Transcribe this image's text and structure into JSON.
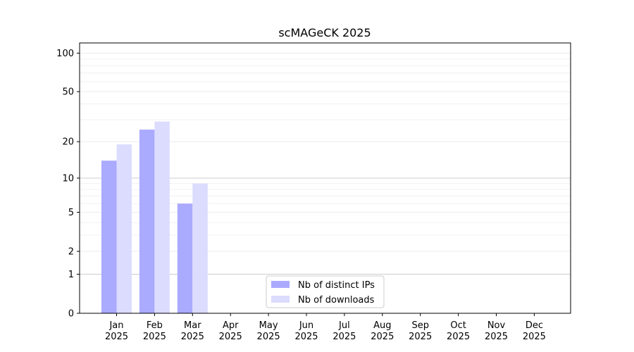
{
  "chart_data": {
    "type": "bar",
    "title": "scMAGeCK 2025",
    "xlabel": "",
    "ylabel": "",
    "yscale": "symlog",
    "ylim": [
      0,
      120
    ],
    "y_ticks": [
      0,
      1,
      2,
      5,
      10,
      20,
      50,
      100
    ],
    "y_tick_labels": [
      "0",
      "1",
      "2",
      "5",
      "10",
      "20",
      "50",
      "100"
    ],
    "categories": [
      "Jan\n2025",
      "Feb\n2025",
      "Mar\n2025",
      "Apr\n2025",
      "May\n2025",
      "Jun\n2025",
      "Jul\n2025",
      "Aug\n2025",
      "Sep\n2025",
      "Oct\n2025",
      "Nov\n2025",
      "Dec\n2025"
    ],
    "series": [
      {
        "name": "Nb of distinct IPs",
        "color": "#aaaaff",
        "values": [
          14,
          25,
          6,
          0,
          0,
          0,
          0,
          0,
          0,
          0,
          0,
          0
        ]
      },
      {
        "name": "Nb of downloads",
        "color": "#dcdcff",
        "values": [
          19,
          29,
          9,
          0,
          0,
          0,
          0,
          0,
          0,
          0,
          0,
          0
        ]
      }
    ],
    "grid": true,
    "legend_position": "bottom-center"
  }
}
